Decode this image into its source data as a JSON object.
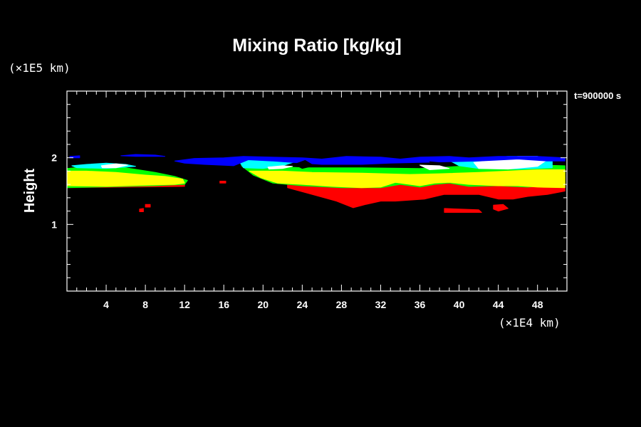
{
  "chart_data": {
    "type": "heatmap",
    "title": "Mixing Ratio [kg/kg]",
    "ylabel": "Height",
    "xunit": "(×1E4 km)",
    "yunit": "(×1E5 km)",
    "time_label": "t=900000 s",
    "xlim": [
      0,
      51
    ],
    "ylim": [
      0,
      3
    ],
    "x_ticks": [
      4,
      8,
      12,
      16,
      20,
      24,
      28,
      32,
      36,
      40,
      44,
      48
    ],
    "y_ticks": [
      1,
      2
    ],
    "background": "#000000",
    "regions": [
      {
        "color": "#ff0000",
        "points": [
          [
            22.5,
            1.55
          ],
          [
            25,
            1.45
          ],
          [
            27.5,
            1.35
          ],
          [
            29.2,
            1.25
          ],
          [
            30.5,
            1.3
          ],
          [
            32.0,
            1.35
          ],
          [
            33.5,
            1.35
          ],
          [
            36.5,
            1.38
          ],
          [
            38.5,
            1.45
          ],
          [
            39.5,
            1.45
          ],
          [
            42,
            1.45
          ],
          [
            44,
            1.38
          ],
          [
            45.5,
            1.38
          ],
          [
            47,
            1.42
          ],
          [
            49,
            1.45
          ],
          [
            50.8,
            1.5
          ],
          [
            50.8,
            1.72
          ],
          [
            22.5,
            1.72
          ]
        ]
      },
      {
        "color": "#ff0000",
        "points": [
          [
            38.5,
            1.24
          ],
          [
            42,
            1.22
          ],
          [
            42.3,
            1.18
          ],
          [
            38.5,
            1.18
          ]
        ]
      },
      {
        "color": "#ff0000",
        "points": [
          [
            43.5,
            1.29
          ],
          [
            44.5,
            1.3
          ],
          [
            45,
            1.24
          ],
          [
            44,
            1.2
          ],
          [
            43.5,
            1.23
          ]
        ]
      },
      {
        "color": "#ff0000",
        "points": [
          [
            7.4,
            1.23
          ],
          [
            7.8,
            1.24
          ],
          [
            7.8,
            1.19
          ],
          [
            7.4,
            1.19
          ]
        ]
      },
      {
        "color": "#ff0000",
        "points": [
          [
            8.0,
            1.3
          ],
          [
            8.5,
            1.3
          ],
          [
            8.5,
            1.26
          ],
          [
            8.0,
            1.26
          ]
        ]
      },
      {
        "color": "#ff0000",
        "points": [
          [
            15.6,
            1.65
          ],
          [
            16.2,
            1.65
          ],
          [
            16.2,
            1.62
          ],
          [
            15.6,
            1.62
          ]
        ]
      },
      {
        "color": "#ff0000",
        "points": [
          [
            0,
            1.55
          ],
          [
            12,
            1.57
          ],
          [
            12,
            1.61
          ],
          [
            0,
            1.61
          ]
        ]
      },
      {
        "color": "#00ff00",
        "points": [
          [
            0,
            1.55
          ],
          [
            9,
            1.58
          ],
          [
            12,
            1.6
          ],
          [
            12.3,
            1.66
          ],
          [
            11,
            1.72
          ],
          [
            9,
            1.78
          ],
          [
            6,
            1.85
          ],
          [
            3,
            1.88
          ],
          [
            0,
            1.84
          ]
        ]
      },
      {
        "color": "#00ff00",
        "points": [
          [
            17.8,
            1.88
          ],
          [
            19,
            1.74
          ],
          [
            21,
            1.62
          ],
          [
            24,
            1.58
          ],
          [
            28,
            1.55
          ],
          [
            32,
            1.55
          ],
          [
            34,
            1.6
          ],
          [
            36,
            1.56
          ],
          [
            37.5,
            1.6
          ],
          [
            39,
            1.62
          ],
          [
            41,
            1.57
          ],
          [
            44,
            1.58
          ],
          [
            47,
            1.56
          ],
          [
            50.8,
            1.6
          ],
          [
            50.8,
            1.88
          ],
          [
            46,
            1.9
          ],
          [
            40,
            1.87
          ],
          [
            36,
            1.84
          ],
          [
            30,
            1.85
          ],
          [
            24,
            1.85
          ],
          [
            20,
            1.88
          ]
        ]
      },
      {
        "color": "#ffff00",
        "points": [
          [
            0,
            1.58
          ],
          [
            4,
            1.57
          ],
          [
            8,
            1.59
          ],
          [
            11,
            1.6
          ],
          [
            12,
            1.62
          ],
          [
            11.8,
            1.68
          ],
          [
            10,
            1.72
          ],
          [
            8,
            1.74
          ],
          [
            5,
            1.78
          ],
          [
            2,
            1.8
          ],
          [
            0,
            1.8
          ]
        ]
      },
      {
        "color": "#ffff00",
        "points": [
          [
            18.6,
            1.8
          ],
          [
            19.8,
            1.7
          ],
          [
            21.5,
            1.62
          ],
          [
            24,
            1.6
          ],
          [
            27,
            1.57
          ],
          [
            30,
            1.55
          ],
          [
            32,
            1.56
          ],
          [
            33.5,
            1.63
          ],
          [
            36,
            1.58
          ],
          [
            37.5,
            1.62
          ],
          [
            39,
            1.63
          ],
          [
            41,
            1.6
          ],
          [
            44,
            1.58
          ],
          [
            46,
            1.58
          ],
          [
            48,
            1.56
          ],
          [
            50.8,
            1.55
          ],
          [
            50.8,
            1.82
          ],
          [
            48,
            1.82
          ],
          [
            45,
            1.8
          ],
          [
            42,
            1.78
          ],
          [
            38,
            1.76
          ],
          [
            35,
            1.75
          ],
          [
            30,
            1.77
          ],
          [
            25,
            1.78
          ],
          [
            22,
            1.8
          ]
        ]
      },
      {
        "color": "#00ffff",
        "points": [
          [
            0.5,
            1.88
          ],
          [
            2,
            1.9
          ],
          [
            4,
            1.92
          ],
          [
            6,
            1.9
          ],
          [
            7,
            1.87
          ],
          [
            4,
            1.84
          ],
          [
            1,
            1.85
          ]
        ]
      },
      {
        "color": "#00ffff",
        "points": [
          [
            17.5,
            1.96
          ],
          [
            19.5,
            1.98
          ],
          [
            23,
            1.98
          ],
          [
            23.5,
            1.95
          ],
          [
            22,
            1.88
          ],
          [
            20,
            1.84
          ],
          [
            18,
            1.85
          ]
        ]
      },
      {
        "color": "#00ffff",
        "points": [
          [
            38.5,
            2.0
          ],
          [
            41,
            1.98
          ],
          [
            45,
            2.02
          ],
          [
            48,
            2.02
          ],
          [
            49.5,
            1.98
          ],
          [
            49.5,
            1.85
          ],
          [
            46,
            1.83
          ],
          [
            42,
            1.84
          ],
          [
            40,
            1.88
          ]
        ]
      },
      {
        "color": "#ffffff",
        "points": [
          [
            3.5,
            1.88
          ],
          [
            5,
            1.91
          ],
          [
            6.2,
            1.89
          ],
          [
            5,
            1.85
          ],
          [
            3.6,
            1.85
          ]
        ]
      },
      {
        "color": "#ffffff",
        "points": [
          [
            20.5,
            1.86
          ],
          [
            22,
            1.88
          ],
          [
            23,
            1.87
          ],
          [
            22,
            1.84
          ],
          [
            20.6,
            1.83
          ]
        ]
      },
      {
        "color": "#ffffff",
        "points": [
          [
            41.5,
            1.93
          ],
          [
            44,
            1.97
          ],
          [
            46,
            2.02
          ],
          [
            48,
            2.02
          ],
          [
            49,
            1.97
          ],
          [
            48,
            1.87
          ],
          [
            45,
            1.83
          ],
          [
            42,
            1.84
          ]
        ]
      },
      {
        "color": "#ffffff",
        "points": [
          [
            36,
            1.89
          ],
          [
            38,
            1.88
          ],
          [
            39,
            1.84
          ],
          [
            37,
            1.82
          ]
        ]
      },
      {
        "color": "#0000ff",
        "points": [
          [
            11,
            1.95
          ],
          [
            13,
            1.99
          ],
          [
            16,
            2.0
          ],
          [
            18,
            2.02
          ],
          [
            24,
            2.0
          ],
          [
            26,
            1.98
          ],
          [
            28.5,
            2.02
          ],
          [
            32,
            2.01
          ],
          [
            34,
            1.98
          ],
          [
            36,
            2.01
          ],
          [
            39,
            2.02
          ],
          [
            41,
            2.0
          ],
          [
            44,
            2.02
          ],
          [
            48,
            2.02
          ],
          [
            50.8,
            2.0
          ],
          [
            50.8,
            1.95
          ],
          [
            49,
            1.95
          ],
          [
            46,
            1.98
          ],
          [
            42,
            1.95
          ],
          [
            39,
            1.94
          ],
          [
            36,
            1.93
          ],
          [
            33,
            1.92
          ],
          [
            30,
            1.9
          ],
          [
            26,
            1.9
          ],
          [
            23,
            1.93
          ],
          [
            21,
            1.95
          ],
          [
            18.5,
            1.97
          ],
          [
            17,
            1.88
          ],
          [
            14,
            1.9
          ],
          [
            12,
            1.92
          ]
        ]
      },
      {
        "color": "#0000ff",
        "points": [
          [
            5.5,
            2.03
          ],
          [
            7,
            2.05
          ],
          [
            9,
            2.04
          ],
          [
            10,
            2.02
          ],
          [
            7,
            2.02
          ]
        ]
      },
      {
        "color": "#0000ff",
        "points": [
          [
            0.3,
            2.02
          ],
          [
            1.3,
            2.03
          ],
          [
            1.3,
            2.0
          ],
          [
            0.3,
            2.0
          ]
        ]
      },
      {
        "color": "#000000",
        "points": [
          [
            23.2,
            1.9
          ],
          [
            24.3,
            1.96
          ],
          [
            25.2,
            1.88
          ],
          [
            24,
            1.84
          ]
        ]
      },
      {
        "color": "#000000",
        "points": [
          [
            37,
            1.94
          ],
          [
            38.5,
            1.92
          ],
          [
            39,
            1.9
          ],
          [
            37.5,
            1.9
          ]
        ]
      }
    ]
  }
}
